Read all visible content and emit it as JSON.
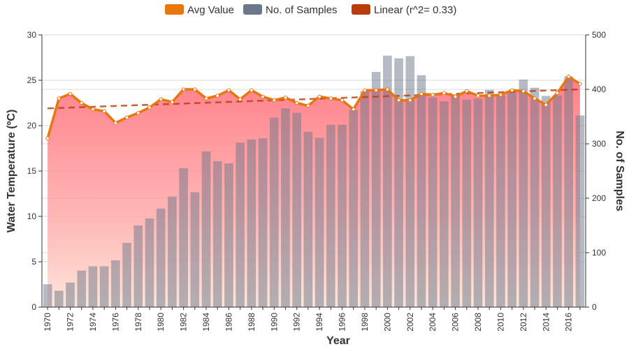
{
  "chart_data": {
    "type": "bar+line+area",
    "xlabel": "Year",
    "ylabel_left": "Water Temperature (ºC)",
    "ylabel_right": "No. of Samples",
    "ylim_left": [
      0,
      30
    ],
    "ylim_right": [
      0,
      500
    ],
    "yticks_left": [
      0,
      5,
      10,
      15,
      20,
      25,
      30
    ],
    "yticks_right": [
      0,
      100,
      200,
      300,
      400,
      500
    ],
    "grid": true,
    "legend_position": "top-center",
    "legend": [
      {
        "name": "Avg Value",
        "color": "#e8760c"
      },
      {
        "name": "No. of Samples",
        "color": "#6b778a"
      },
      {
        "name": "Linear (r^2= 0.33)",
        "color": "#b83c0c"
      }
    ],
    "years": [
      1970,
      1971,
      1972,
      1973,
      1974,
      1975,
      1976,
      1977,
      1978,
      1979,
      1980,
      1981,
      1982,
      1983,
      1984,
      1985,
      1986,
      1987,
      1988,
      1989,
      1990,
      1991,
      1992,
      1993,
      1994,
      1995,
      1996,
      1997,
      1998,
      1999,
      2000,
      2001,
      2002,
      2003,
      2004,
      2005,
      2006,
      2007,
      2008,
      2009,
      2010,
      2011,
      2012,
      2013,
      2014,
      2015,
      2016,
      2017
    ],
    "xtick_labels": [
      "1970",
      "1972",
      "1974",
      "1976",
      "1978",
      "1980",
      "1982",
      "1984",
      "1986",
      "1988",
      "1990",
      "1992",
      "1994",
      "1996",
      "1998",
      "2000",
      "2002",
      "2004",
      "2006",
      "2008",
      "2010",
      "2012",
      "2014",
      "2016"
    ],
    "series": [
      {
        "name": "No. of Samples",
        "axis": "right",
        "values": [
          42,
          30,
          45,
          67,
          75,
          75,
          86,
          118,
          150,
          163,
          181,
          203,
          255,
          211,
          286,
          268,
          264,
          302,
          308,
          310,
          348,
          365,
          357,
          322,
          311,
          335,
          335,
          362,
          397,
          432,
          462,
          457,
          461,
          426,
          385,
          378,
          391,
          381,
          383,
          399,
          389,
          397,
          418,
          403,
          388,
          389,
          424,
          352
        ]
      },
      {
        "name": "Avg Value",
        "axis": "left",
        "values": [
          18.6,
          23.0,
          23.5,
          22.5,
          21.8,
          21.6,
          20.3,
          20.9,
          21.4,
          22.0,
          22.9,
          22.6,
          24.0,
          24.0,
          23.0,
          23.3,
          23.9,
          22.9,
          23.9,
          23.2,
          22.8,
          23.1,
          22.5,
          22.2,
          23.2,
          23.0,
          22.8,
          21.8,
          23.9,
          23.9,
          24.0,
          22.8,
          22.8,
          23.5,
          23.4,
          23.6,
          23.2,
          23.8,
          23.3,
          23.3,
          23.4,
          23.9,
          23.8,
          23.0,
          22.3,
          23.6,
          25.4,
          24.6
        ]
      },
      {
        "name": "Linear (r^2= 0.33)",
        "axis": "left",
        "values": [
          21.9,
          24.0
        ]
      }
    ]
  }
}
